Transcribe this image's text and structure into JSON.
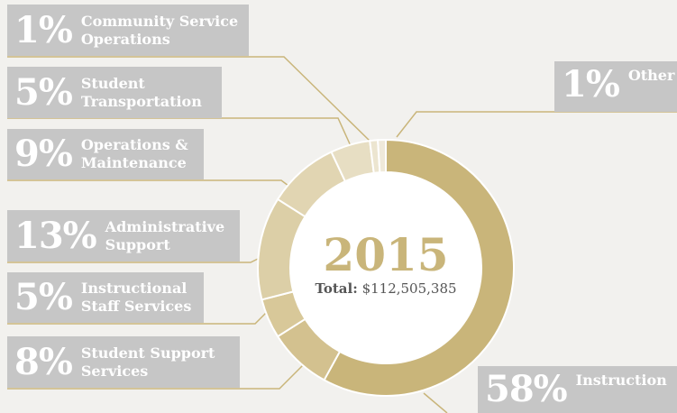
{
  "chart_data": {
    "type": "donut",
    "title": "2015",
    "total_label": "Total:",
    "total_value": "$112,505,385",
    "categories": [
      "Instruction",
      "Student Support Services",
      "Instructional Staff Services",
      "Administrative Support",
      "Operations & Maintenance",
      "Student Transportation",
      "Community Service Operations",
      "Other"
    ],
    "values": [
      58,
      8,
      5,
      13,
      9,
      5,
      1,
      1
    ],
    "value_labels": [
      "58%",
      "8%",
      "5%",
      "13%",
      "9%",
      "5%",
      "1%",
      "1%"
    ],
    "colors": [
      "#c9b57a",
      "#d3c18f",
      "#d8c899",
      "#dccfa7",
      "#e1d5b2",
      "#e7dec3",
      "#ece5d0",
      "#efe9da"
    ]
  }
}
